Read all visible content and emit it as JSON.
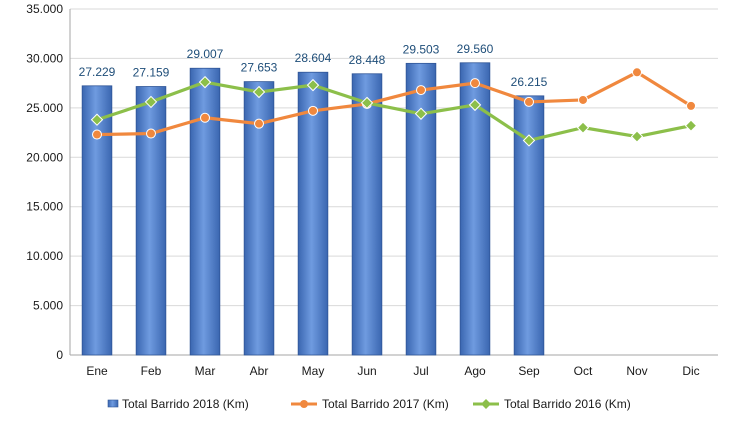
{
  "chart_data": {
    "type": "bar",
    "categories": [
      "Ene",
      "Feb",
      "Mar",
      "Abr",
      "May",
      "Jun",
      "Jul",
      "Ago",
      "Sep",
      "Oct",
      "Nov",
      "Dic"
    ],
    "ylim": [
      0,
      35000
    ],
    "yticks": [
      0,
      5000,
      10000,
      15000,
      20000,
      25000,
      30000,
      35000
    ],
    "ytick_labels": [
      "0",
      "5.000",
      "10.000",
      "15.000",
      "20.000",
      "25.000",
      "30.000",
      "35.000"
    ],
    "grid": "horizontal",
    "legend_position": "bottom",
    "series": [
      {
        "name": "Total Barrido 2018 (Km)",
        "type": "bar",
        "color": "#4a7ac9",
        "values": [
          27229,
          27159,
          29007,
          27653,
          28604,
          28448,
          29503,
          29560,
          26215,
          null,
          null,
          null
        ],
        "labels": [
          "27.229",
          "27.159",
          "29.007",
          "27.653",
          "28.604",
          "28.448",
          "29.503",
          "29.560",
          "26.215",
          null,
          null,
          null
        ]
      },
      {
        "name": "Total Barrido 2017 (Km)",
        "type": "line",
        "marker": "circle",
        "color": "#f0883e",
        "values": [
          22300,
          22400,
          24000,
          23400,
          24700,
          25400,
          26800,
          27500,
          25600,
          25800,
          28600,
          25200
        ]
      },
      {
        "name": "Total Barrido 2016 (Km)",
        "type": "line",
        "marker": "diamond",
        "color": "#8cbf4a",
        "values": [
          23800,
          25600,
          27600,
          26600,
          27300,
          25500,
          24400,
          25300,
          21700,
          23000,
          22100,
          23200
        ]
      }
    ]
  }
}
